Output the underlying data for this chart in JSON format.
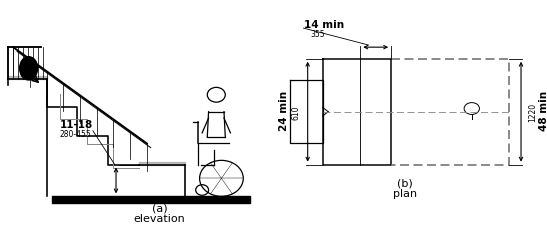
{
  "fig_width": 5.47,
  "fig_height": 2.3,
  "dpi": 100,
  "label_a": "(a)",
  "label_b": "(b)",
  "title_a": "elevation",
  "title_b": "plan",
  "dim_11_18": "11-18",
  "dim_280_455": "280-455",
  "dim_14_min": "14 min",
  "dim_355": "355",
  "dim_24_min": "24 min",
  "dim_610": "610",
  "dim_48_min": "48 min",
  "dim_1220": "1220",
  "line_color": "#000000",
  "gray_color": "#888888",
  "dashed_color": "#666666",
  "bg_color": "#ffffff"
}
